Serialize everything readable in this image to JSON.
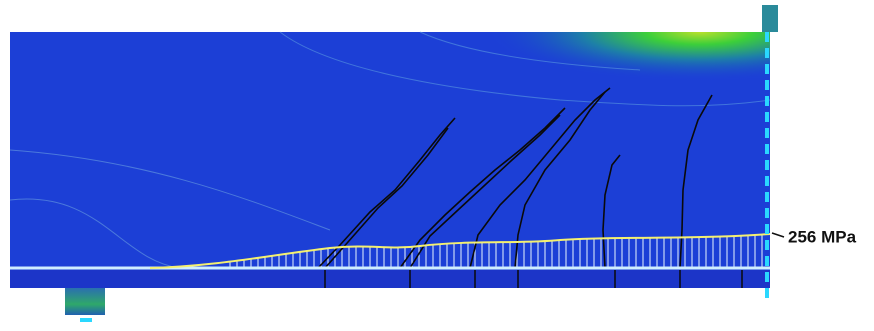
{
  "stress_label": "256 MPa"
}
